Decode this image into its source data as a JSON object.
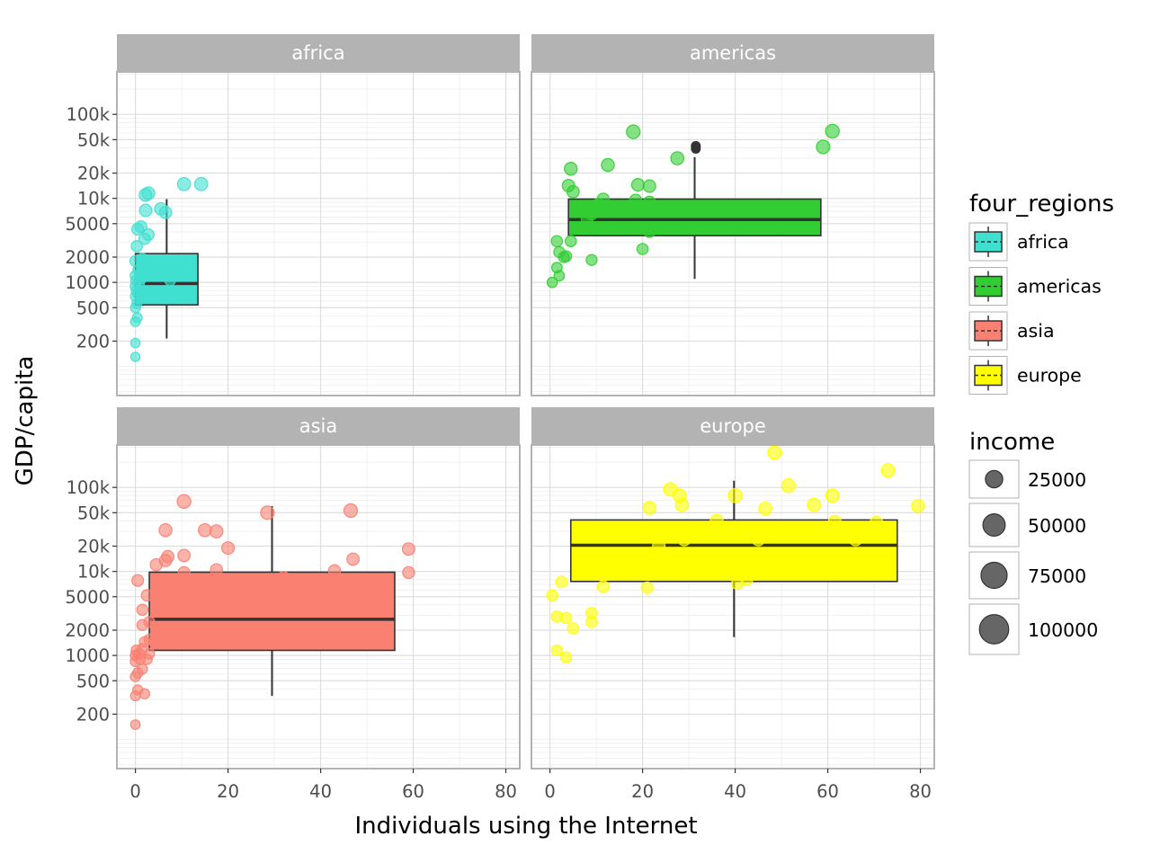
{
  "chart_data": {
    "type": "faceted box plot with jittered points",
    "xlabel": "Individuals using the Internet",
    "ylabel": "GDP/capita",
    "x_scale": "linear",
    "xlim": [
      -4,
      83
    ],
    "x_ticks": [
      0,
      20,
      40,
      60,
      80
    ],
    "x_tick_labels": [
      "0",
      "20",
      "40",
      "60",
      "80"
    ],
    "y_scale": "log10",
    "ylim": [
      45,
      320000
    ],
    "y_ticks": [
      200,
      500,
      1000,
      2000,
      5000,
      10000,
      20000,
      50000,
      100000
    ],
    "y_tick_labels": [
      "200",
      "500",
      "1000",
      "2000",
      "5000",
      "10k",
      "20k",
      "50k",
      "100k"
    ],
    "color_legend": {
      "title": "four_regions",
      "items": [
        {
          "label": "africa",
          "color": "#40e0d0"
        },
        {
          "label": "americas",
          "color": "#32cd32"
        },
        {
          "label": "asia",
          "color": "#fa8072"
        },
        {
          "label": "europe",
          "color": "#ffff00"
        }
      ]
    },
    "size_legend": {
      "title": "income",
      "items": [
        {
          "label": "25000",
          "value": 25000
        },
        {
          "label": "50000",
          "value": 50000
        },
        {
          "label": "75000",
          "value": 75000
        },
        {
          "label": "100000",
          "value": 100000
        }
      ]
    },
    "facets": [
      {
        "label": "africa",
        "color": "#40e0d0",
        "box": {
          "x_min": 0,
          "x_max": 13.5,
          "q1": 540,
          "median": 970,
          "q3": 2200,
          "whisker_low": 215,
          "whisker_high": 9800
        },
        "points": [
          [
            0,
            130,
            1500
          ],
          [
            0,
            190,
            1700
          ],
          [
            0,
            340,
            2000
          ],
          [
            0.4,
            380,
            2100
          ],
          [
            0,
            500,
            2300
          ],
          [
            0.3,
            560,
            2200
          ],
          [
            0,
            680,
            2500
          ],
          [
            0.5,
            730,
            2600
          ],
          [
            0.2,
            800,
            2700
          ],
          [
            0,
            900,
            2800
          ],
          [
            0.8,
            950,
            2800
          ],
          [
            0.1,
            1050,
            3000
          ],
          [
            1.2,
            1100,
            3000
          ],
          [
            0,
            1200,
            3100
          ],
          [
            0.6,
            1400,
            3300
          ],
          [
            0,
            1800,
            3600
          ],
          [
            1.5,
            1900,
            3700
          ],
          [
            0.3,
            2700,
            4200
          ],
          [
            2,
            3300,
            4500
          ],
          [
            2.8,
            3700,
            4700
          ],
          [
            0.5,
            4300,
            5300
          ],
          [
            1.2,
            4600,
            5500
          ],
          [
            2.2,
            7200,
            6500
          ],
          [
            5.5,
            7500,
            6500
          ],
          [
            6.5,
            6800,
            6300
          ],
          [
            2.2,
            11000,
            7300
          ],
          [
            2.8,
            11500,
            7400
          ],
          [
            10.5,
            14800,
            8000
          ],
          [
            14.2,
            14800,
            8000
          ],
          [
            3.5,
            1200,
            3100
          ],
          [
            7.5,
            1050,
            3000
          ],
          [
            1,
            1250,
            3100
          ]
        ]
      },
      {
        "label": "americas",
        "color": "#32cd32",
        "box": {
          "x_min": 4,
          "x_max": 58.5,
          "q1": 3600,
          "median": 5600,
          "q3": 9800,
          "whisker_low": 1100,
          "whisker_high": 31000
        },
        "outliers": [
          [
            31.5,
            39000
          ],
          [
            31.5,
            42000
          ]
        ],
        "points": [
          [
            0.5,
            1000,
            2800
          ],
          [
            2,
            1200,
            3000
          ],
          [
            1.5,
            1500,
            3200
          ],
          [
            2,
            2300,
            3800
          ],
          [
            3,
            2000,
            3700
          ],
          [
            3.5,
            2050,
            3700
          ],
          [
            1.5,
            3100,
            4000
          ],
          [
            4.5,
            3100,
            4000
          ],
          [
            6,
            4500,
            4400
          ],
          [
            8,
            5500,
            4700
          ],
          [
            9,
            6500,
            5000
          ],
          [
            10.5,
            8500,
            5500
          ],
          [
            11.5,
            9800,
            5800
          ],
          [
            6.5,
            8000,
            5400
          ],
          [
            4,
            14200,
            6500
          ],
          [
            5,
            12000,
            6200
          ],
          [
            4.5,
            22500,
            7400
          ],
          [
            12.5,
            25000,
            7500
          ],
          [
            19,
            14500,
            6700
          ],
          [
            21.5,
            14000,
            6600
          ],
          [
            9,
            1850,
            3700
          ],
          [
            20,
            2500,
            3900
          ],
          [
            21.5,
            4000,
            4300
          ],
          [
            15.5,
            4500,
            4400
          ],
          [
            18.5,
            9500,
            5800
          ],
          [
            21.5,
            9000,
            5700
          ],
          [
            27.5,
            30000,
            7900
          ],
          [
            18,
            62000,
            9500
          ],
          [
            59,
            41000,
            9000
          ],
          [
            61,
            63000,
            9600
          ]
        ]
      },
      {
        "label": "asia",
        "color": "#fa8072",
        "box": {
          "x_min": 3,
          "x_max": 56,
          "q1": 1150,
          "median": 2700,
          "q3": 9800,
          "whisker_low": 330,
          "whisker_high": 60000
        },
        "points": [
          [
            0,
            150,
            1800
          ],
          [
            0,
            330,
            2200
          ],
          [
            0.5,
            390,
            2300
          ],
          [
            2,
            350,
            2300
          ],
          [
            0,
            560,
            2500
          ],
          [
            0.5,
            620,
            2600
          ],
          [
            1.5,
            690,
            2600
          ],
          [
            0,
            850,
            2800
          ],
          [
            1,
            900,
            2800
          ],
          [
            2.5,
            900,
            2800
          ],
          [
            0,
            1000,
            2900
          ],
          [
            0.8,
            1050,
            3000
          ],
          [
            3,
            1050,
            3000
          ],
          [
            0.2,
            1150,
            3000
          ],
          [
            1.5,
            1200,
            3100
          ],
          [
            2,
            1450,
            3200
          ],
          [
            3,
            1550,
            3300
          ],
          [
            1.5,
            2300,
            3700
          ],
          [
            3,
            2500,
            3800
          ],
          [
            1.5,
            3500,
            4100
          ],
          [
            2.5,
            5200,
            4500
          ],
          [
            0.5,
            7800,
            5000
          ],
          [
            4.5,
            12000,
            5800
          ],
          [
            6.5,
            13500,
            6000
          ],
          [
            7,
            15000,
            6200
          ],
          [
            10.5,
            15500,
            6300
          ],
          [
            10.5,
            9700,
            5500
          ],
          [
            17.5,
            10500,
            5500
          ],
          [
            20,
            19000,
            6600
          ],
          [
            6.5,
            31000,
            7500
          ],
          [
            15,
            31000,
            7800
          ],
          [
            17.5,
            30000,
            7800
          ],
          [
            10.5,
            68000,
            9500
          ],
          [
            28.5,
            50000,
            9000
          ],
          [
            46.5,
            53000,
            9000
          ],
          [
            32,
            8500,
            5500
          ],
          [
            43,
            10200,
            5600
          ],
          [
            47,
            14000,
            6200
          ],
          [
            59,
            18500,
            6600
          ],
          [
            59,
            9700,
            5500
          ]
        ]
      },
      {
        "label": "europe",
        "color": "#ffff00",
        "box": {
          "x_min": 4.5,
          "x_max": 75,
          "q1": 7600,
          "median": 20500,
          "q3": 41000,
          "whisker_low": 1650,
          "whisker_high": 120000
        },
        "points": [
          [
            0.5,
            5200,
            3800
          ],
          [
            1.5,
            2900,
            4000
          ],
          [
            2.5,
            7500,
            4200
          ],
          [
            3.5,
            2800,
            4100
          ],
          [
            5,
            2100,
            4000
          ],
          [
            1.5,
            1150,
            3600
          ],
          [
            3.5,
            950,
            3500
          ],
          [
            9,
            3200,
            4300
          ],
          [
            9,
            2500,
            4200
          ],
          [
            11.5,
            6600,
            5000
          ],
          [
            21,
            6400,
            5000
          ],
          [
            21.5,
            57000,
            7500
          ],
          [
            26,
            95000,
            8600
          ],
          [
            28,
            80000,
            8200
          ],
          [
            28.5,
            62000,
            7800
          ],
          [
            29,
            24000,
            6800
          ],
          [
            36,
            40000,
            7200
          ],
          [
            40,
            80000,
            9600
          ],
          [
            40.5,
            7200,
            5300
          ],
          [
            38,
            28000,
            6900
          ],
          [
            45,
            24000,
            6800
          ],
          [
            46.5,
            56000,
            7600
          ],
          [
            48.5,
            260000,
            9000
          ],
          [
            51.5,
            105000,
            9400
          ],
          [
            57,
            62000,
            8000
          ],
          [
            61,
            80000,
            8500
          ],
          [
            61.5,
            39000,
            7200
          ],
          [
            64,
            26000,
            6800
          ],
          [
            70.5,
            38000,
            7200
          ],
          [
            73,
            160000,
            8800
          ],
          [
            79.5,
            60000,
            7600
          ],
          [
            17.5,
            15000,
            6500
          ],
          [
            23.5,
            20000,
            6600
          ],
          [
            42.5,
            8000,
            5300
          ],
          [
            66,
            24000,
            6800
          ]
        ]
      }
    ]
  }
}
